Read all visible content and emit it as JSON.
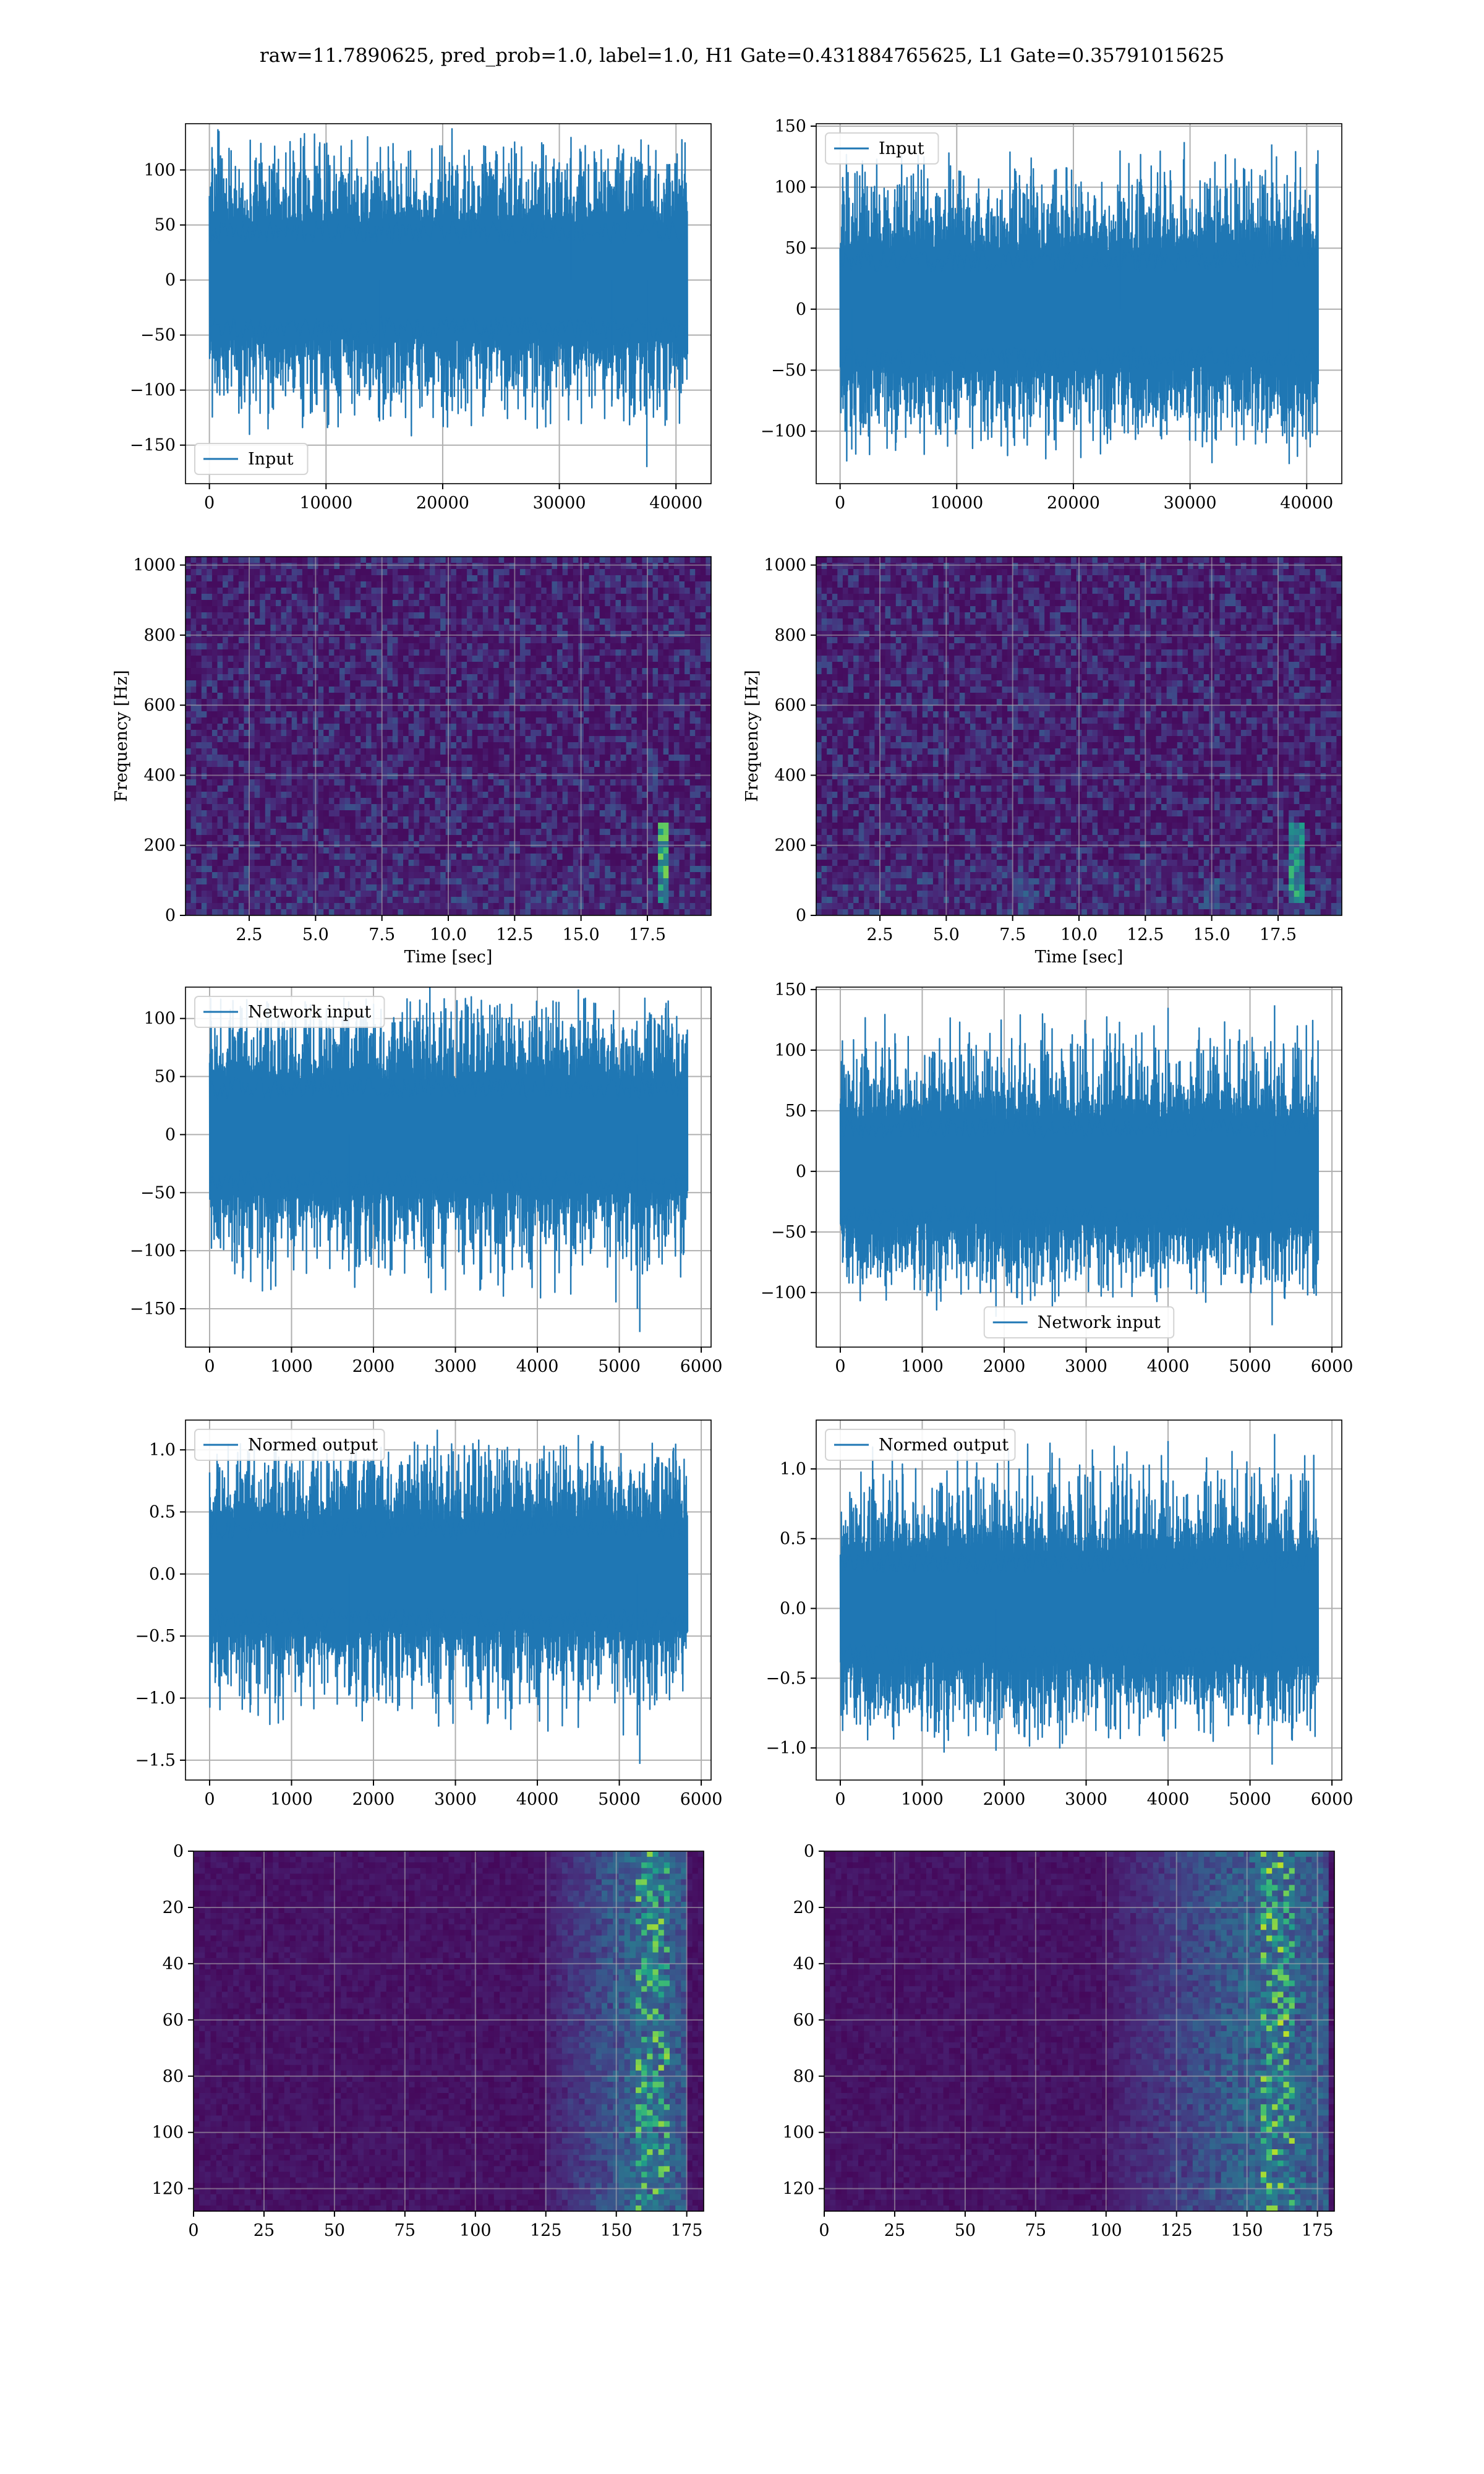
{
  "figure": {
    "suptitle": "raw=11.7890625, pred_prob=1.0, label=1.0, H1 Gate=0.431884765625, L1 Gate=0.35791015625",
    "line_color": "#1f77b4",
    "grid_color": "#b0b0b0",
    "colormap": "viridis"
  },
  "chart_data": [
    {
      "type": "line",
      "id": "h1-input",
      "xlim": [
        -2048,
        43008
      ],
      "ylim": [
        -185,
        142
      ],
      "xticks": [
        0,
        10000,
        20000,
        30000,
        40000
      ],
      "xticklabels": [
        "0",
        "10000",
        "20000",
        "30000",
        "40000"
      ],
      "yticks": [
        -150,
        -100,
        -50,
        0,
        50,
        100
      ],
      "yticklabels": [
        "−150",
        "−100",
        "−50",
        "0",
        "50",
        "100"
      ],
      "grid": true,
      "legend_placement": "lower left",
      "series": [
        {
          "name": "Input",
          "x_range": [
            0,
            40960
          ],
          "band": [
            -60,
            60
          ],
          "min": -170,
          "max": 130
        }
      ],
      "spikes": [
        {
          "x": 4000,
          "y": -110
        },
        {
          "x": 14500,
          "y": -125
        },
        {
          "x": 31000,
          "y": 130
        },
        {
          "x": 34500,
          "y": -115
        },
        {
          "x": 37500,
          "y": -170
        }
      ]
    },
    {
      "type": "line",
      "id": "l1-input",
      "xlim": [
        -2048,
        43008
      ],
      "ylim": [
        -143,
        152
      ],
      "xticks": [
        0,
        10000,
        20000,
        30000,
        40000
      ],
      "xticklabels": [
        "0",
        "10000",
        "20000",
        "30000",
        "40000"
      ],
      "yticks": [
        -100,
        -50,
        0,
        50,
        100,
        150
      ],
      "yticklabels": [
        "−100",
        "−50",
        "0",
        "50",
        "100",
        "150"
      ],
      "grid": true,
      "legend_placement": "upper left",
      "series": [
        {
          "name": "Input",
          "x_range": [
            0,
            40960
          ],
          "band": [
            -55,
            55
          ],
          "min": -127,
          "max": 137
        }
      ],
      "spikes": [
        {
          "x": 29500,
          "y": 137
        },
        {
          "x": 37000,
          "y": 135
        },
        {
          "x": 24000,
          "y": 130
        },
        {
          "x": 38500,
          "y": -127
        },
        {
          "x": 1000,
          "y": -115
        }
      ]
    },
    {
      "type": "heatmap",
      "id": "h1-spectrogram",
      "colormap": "viridis",
      "xlim": [
        0.1,
        19.9
      ],
      "ylim": [
        0,
        1024
      ],
      "xticks": [
        2.5,
        5.0,
        7.5,
        10.0,
        12.5,
        15.0,
        17.5
      ],
      "xticklabels": [
        "2.5",
        "5.0",
        "7.5",
        "10.0",
        "12.5",
        "15.0",
        "17.5"
      ],
      "yticks": [
        0,
        200,
        400,
        600,
        800,
        1000
      ],
      "yticklabels": [
        "0",
        "200",
        "400",
        "600",
        "800",
        "1000"
      ],
      "xlabel": "Time [sec]",
      "ylabel": "Frequency [Hz]",
      "grid": true,
      "hotspots": [
        {
          "t": 18.1,
          "f_min": 30,
          "f_max": 260,
          "intensity": 0.8
        },
        {
          "t": 17.7,
          "f_min": 350,
          "f_max": 480,
          "intensity": 0.3
        }
      ]
    },
    {
      "type": "heatmap",
      "id": "l1-spectrogram",
      "colormap": "viridis",
      "xlim": [
        0.1,
        19.9
      ],
      "ylim": [
        0,
        1024
      ],
      "xticks": [
        2.5,
        5.0,
        7.5,
        10.0,
        12.5,
        15.0,
        17.5
      ],
      "xticklabels": [
        "2.5",
        "5.0",
        "7.5",
        "10.0",
        "12.5",
        "15.0",
        "17.5"
      ],
      "yticks": [
        0,
        200,
        400,
        600,
        800,
        1000
      ],
      "yticklabels": [
        "0",
        "200",
        "400",
        "600",
        "800",
        "1000"
      ],
      "xlabel": "Time [sec]",
      "ylabel": "Frequency [Hz]",
      "grid": true,
      "hotspots": [
        {
          "t": 18.2,
          "f_min": 30,
          "f_max": 260,
          "intensity": 0.7
        },
        {
          "t": 8.0,
          "f_min": 20,
          "f_max": 110,
          "intensity": 0.35
        },
        {
          "t": 15.0,
          "f_min": 20,
          "f_max": 110,
          "intensity": 0.35
        }
      ]
    },
    {
      "type": "line",
      "id": "h1-network-input",
      "xlim": [
        -294,
        6120
      ],
      "ylim": [
        -183,
        127
      ],
      "xticks": [
        0,
        1000,
        2000,
        3000,
        4000,
        5000,
        6000
      ],
      "xticklabels": [
        "0",
        "1000",
        "2000",
        "3000",
        "4000",
        "5000",
        "6000"
      ],
      "yticks": [
        -150,
        -100,
        -50,
        0,
        50,
        100
      ],
      "yticklabels": [
        "−150",
        "−100",
        "−50",
        "0",
        "50",
        "100"
      ],
      "grid": true,
      "legend_placement": "upper left",
      "series": [
        {
          "name": "Network input",
          "x_range": [
            0,
            5830
          ],
          "band": [
            -55,
            55
          ],
          "min": -170,
          "max": 125
        }
      ],
      "spikes": [
        {
          "x": 4500,
          "y": 125
        },
        {
          "x": 1700,
          "y": -108
        },
        {
          "x": 5250,
          "y": -170
        },
        {
          "x": 5220,
          "y": -150
        }
      ]
    },
    {
      "type": "line",
      "id": "l1-network-input",
      "xlim": [
        -294,
        6120
      ],
      "ylim": [
        -145,
        152
      ],
      "xticks": [
        0,
        1000,
        2000,
        3000,
        4000,
        5000,
        6000
      ],
      "xticklabels": [
        "0",
        "1000",
        "2000",
        "3000",
        "4000",
        "5000",
        "6000"
      ],
      "yticks": [
        -100,
        -50,
        0,
        50,
        100,
        150
      ],
      "yticklabels": [
        "−100",
        "−50",
        "0",
        "50",
        "100",
        "150"
      ],
      "grid": true,
      "legend_placement": "lower center",
      "series": [
        {
          "name": "Network input",
          "x_range": [
            0,
            5830
          ],
          "band": [
            -50,
            50
          ],
          "min": -127,
          "max": 137
        }
      ],
      "spikes": [
        {
          "x": 5300,
          "y": 137
        },
        {
          "x": 4000,
          "y": 135
        },
        {
          "x": 5270,
          "y": -127
        },
        {
          "x": 1900,
          "y": -120
        }
      ]
    },
    {
      "type": "line",
      "id": "h1-normed-output",
      "xlim": [
        -294,
        6120
      ],
      "ylim": [
        -1.66,
        1.24
      ],
      "xticks": [
        0,
        1000,
        2000,
        3000,
        4000,
        5000,
        6000
      ],
      "xticklabels": [
        "0",
        "1000",
        "2000",
        "3000",
        "4000",
        "5000",
        "6000"
      ],
      "yticks": [
        -1.5,
        -1.0,
        -0.5,
        0.0,
        0.5,
        1.0
      ],
      "yticklabels": [
        "−1.5",
        "−1.0",
        "−0.5",
        "0.0",
        "0.5",
        "1.0"
      ],
      "grid": true,
      "legend_placement": "upper left",
      "series": [
        {
          "name": "Normed output",
          "x_range": [
            0,
            5830
          ],
          "band": [
            -0.5,
            0.5
          ],
          "min": -1.53,
          "max": 1.12
        }
      ],
      "spikes": [
        {
          "x": 4500,
          "y": 1.12
        },
        {
          "x": 1700,
          "y": -0.98
        },
        {
          "x": 5250,
          "y": -1.53
        },
        {
          "x": 5220,
          "y": -1.3
        }
      ]
    },
    {
      "type": "line",
      "id": "l1-normed-output",
      "xlim": [
        -294,
        6120
      ],
      "ylim": [
        -1.23,
        1.35
      ],
      "xticks": [
        0,
        1000,
        2000,
        3000,
        4000,
        5000,
        6000
      ],
      "xticklabels": [
        "0",
        "1000",
        "2000",
        "3000",
        "4000",
        "5000",
        "6000"
      ],
      "yticks": [
        -1.0,
        -0.5,
        0.0,
        0.5,
        1.0
      ],
      "yticklabels": [
        "−1.0",
        "−0.5",
        "0.0",
        "0.5",
        "1.0"
      ],
      "grid": true,
      "legend_placement": "upper left",
      "series": [
        {
          "name": "Normed output",
          "x_range": [
            0,
            5830
          ],
          "band": [
            -0.45,
            0.45
          ],
          "min": -1.12,
          "max": 1.25
        }
      ],
      "spikes": [
        {
          "x": 5300,
          "y": 1.25
        },
        {
          "x": 4000,
          "y": 1.2
        },
        {
          "x": 5270,
          "y": -1.12
        },
        {
          "x": 1900,
          "y": -1.02
        }
      ]
    },
    {
      "type": "heatmap",
      "id": "h1-activation-map",
      "colormap": "viridis",
      "xlim": [
        0,
        181
      ],
      "ylim": [
        128,
        0
      ],
      "xticks": [
        0,
        25,
        50,
        75,
        100,
        125,
        150,
        175
      ],
      "xticklabels": [
        "0",
        "25",
        "50",
        "75",
        "100",
        "125",
        "150",
        "175"
      ],
      "yticks": [
        0,
        20,
        40,
        60,
        80,
        100,
        120
      ],
      "yticklabels": [
        "0",
        "20",
        "40",
        "60",
        "80",
        "100",
        "120"
      ],
      "grid": true,
      "active_band": {
        "start": 125,
        "peak": 162,
        "end": 175,
        "peak_intensity": 0.85
      }
    },
    {
      "type": "heatmap",
      "id": "l1-activation-map",
      "colormap": "viridis",
      "xlim": [
        0,
        181
      ],
      "ylim": [
        128,
        0
      ],
      "xticks": [
        0,
        25,
        50,
        75,
        100,
        125,
        150,
        175
      ],
      "xticklabels": [
        "0",
        "25",
        "50",
        "75",
        "100",
        "125",
        "150",
        "175"
      ],
      "yticks": [
        0,
        20,
        40,
        60,
        80,
        100,
        120
      ],
      "yticklabels": [
        "0",
        "20",
        "40",
        "60",
        "80",
        "100",
        "120"
      ],
      "grid": true,
      "active_band": {
        "start": 100,
        "peak": 160,
        "end": 178,
        "peak_intensity": 0.9
      }
    }
  ]
}
